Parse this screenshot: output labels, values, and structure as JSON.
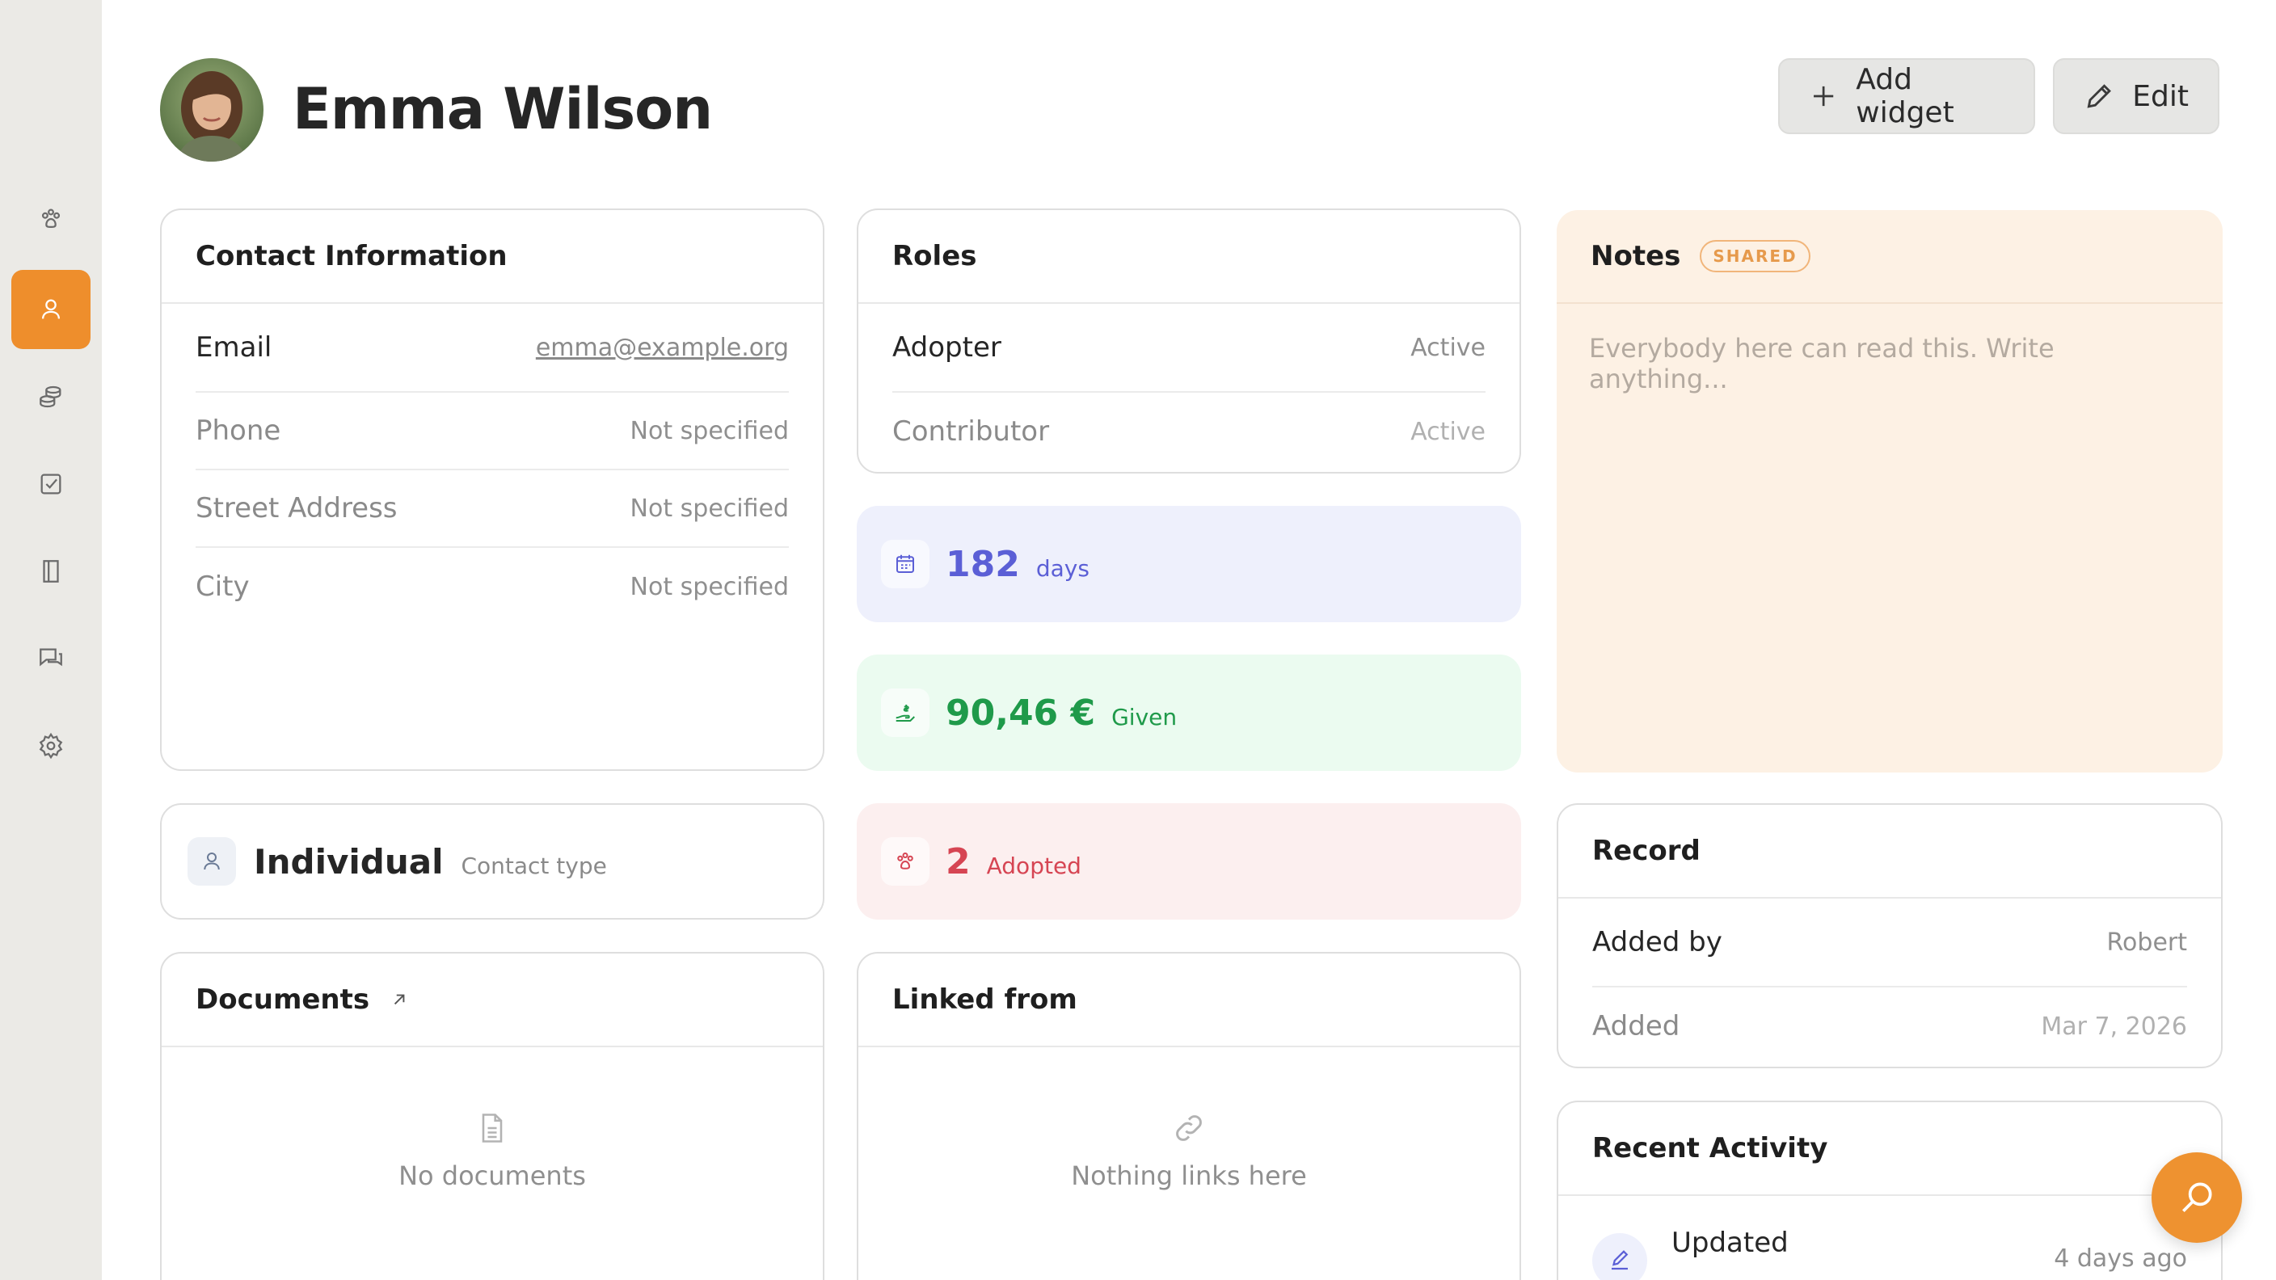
{
  "sidebar": {
    "items": [
      {
        "name": "paw-icon",
        "active": false
      },
      {
        "name": "person-icon",
        "active": true
      },
      {
        "name": "coins-icon",
        "active": false
      },
      {
        "name": "checkbox-icon",
        "active": false
      },
      {
        "name": "book-icon",
        "active": false
      },
      {
        "name": "chat-icon",
        "active": false
      },
      {
        "name": "gear-icon",
        "active": false
      }
    ],
    "accent": "#ee8e2c"
  },
  "header": {
    "name": "Emma Wilson",
    "add_widget_label": "Add widget",
    "edit_label": "Edit"
  },
  "contact": {
    "title": "Contact Information",
    "rows": [
      {
        "label": "Email",
        "value": "emma@example.org"
      },
      {
        "label": "Phone",
        "value": "Not specified"
      },
      {
        "label": "Street Address",
        "value": "Not specified"
      },
      {
        "label": "City",
        "value": "Not specified"
      }
    ]
  },
  "roles": {
    "title": "Roles",
    "rows": [
      {
        "label": "Adopter",
        "value": "Active"
      },
      {
        "label": "Contributor",
        "value": "Active"
      }
    ]
  },
  "stats": {
    "days": {
      "value": "182",
      "unit": "days",
      "color": "#5b5fd6",
      "bg": "#eef0fc"
    },
    "given": {
      "value": "90,46 €",
      "unit": "Given",
      "color": "#1f9a4a",
      "bg": "#ebfbf0"
    },
    "adopted": {
      "value": "2",
      "unit": "Adopted",
      "color": "#d64553",
      "bg": "#fcefef"
    }
  },
  "notes": {
    "title": "Notes",
    "badge": "SHARED",
    "placeholder": "Everybody here can read this. Write anything..."
  },
  "contact_type": {
    "value": "Individual",
    "label": "Contact type"
  },
  "record": {
    "title": "Record",
    "rows": [
      {
        "label": "Added by",
        "value": "Robert"
      },
      {
        "label": "Added",
        "value": "Mar 7, 2026"
      }
    ]
  },
  "documents": {
    "title": "Documents",
    "empty": "No documents"
  },
  "linked": {
    "title": "Linked from",
    "empty": "Nothing links here"
  },
  "activity": {
    "title": "Recent Activity",
    "items": [
      {
        "action": "Updated",
        "time": "4 days ago"
      }
    ]
  }
}
